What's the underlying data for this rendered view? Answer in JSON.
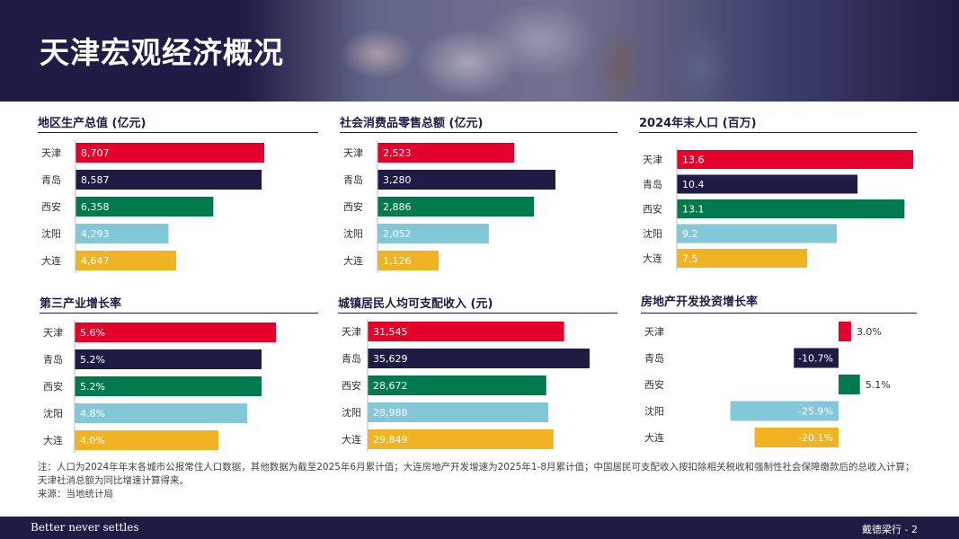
{
  "header": {
    "title": "天津宏观经济概况"
  },
  "colors": {
    "navy": "#1e1b44",
    "red": "#e4002b",
    "green": "#007a4d",
    "lightblue": "#82c8d8",
    "yellow": "#f0b323"
  },
  "chart_data": [
    {
      "type": "bar",
      "orientation": "horizontal",
      "title": "地区生产总值 (亿元)",
      "categories": [
        "天津",
        "青岛",
        "西安",
        "沈阳",
        "大连"
      ],
      "values": [
        8707,
        8587,
        6358,
        4293,
        4647
      ],
      "labels": [
        "8,707",
        "8,587",
        "6,358",
        "4,293",
        "4,647"
      ],
      "colors": [
        "#e4002b",
        "#1e1b44",
        "#007a4d",
        "#82c8d8",
        "#f0b323"
      ]
    },
    {
      "type": "bar",
      "orientation": "horizontal",
      "title": "社会消费品零售总额 (亿元)",
      "categories": [
        "天津",
        "青岛",
        "西安",
        "沈阳",
        "大连"
      ],
      "values": [
        2523,
        3280,
        2886,
        2052,
        1126
      ],
      "labels": [
        "2,523",
        "3,280",
        "2,886",
        "2,052",
        "1,126"
      ],
      "colors": [
        "#e4002b",
        "#1e1b44",
        "#007a4d",
        "#82c8d8",
        "#f0b323"
      ]
    },
    {
      "type": "bar",
      "orientation": "horizontal",
      "title": "2024年末人口 (百万)",
      "categories": [
        "天津",
        "青岛",
        "西安",
        "沈阳",
        "大连"
      ],
      "values": [
        13.6,
        10.4,
        13.1,
        9.2,
        7.5
      ],
      "labels": [
        "13.6",
        "10.4",
        "13.1",
        "9.2",
        "7.5"
      ],
      "colors": [
        "#e4002b",
        "#1e1b44",
        "#007a4d",
        "#82c8d8",
        "#f0b323"
      ]
    },
    {
      "type": "bar",
      "orientation": "horizontal",
      "title": "第三产业增长率",
      "categories": [
        "天津",
        "青岛",
        "西安",
        "沈阳",
        "大连"
      ],
      "values": [
        5.6,
        5.2,
        5.2,
        4.8,
        4.0
      ],
      "labels": [
        "5.6%",
        "5.2%",
        "5.2%",
        "4.8%",
        "4.0%"
      ],
      "colors": [
        "#e4002b",
        "#1e1b44",
        "#007a4d",
        "#82c8d8",
        "#f0b323"
      ]
    },
    {
      "type": "bar",
      "orientation": "horizontal",
      "title": "城镇居民人均可支配收入 (元)",
      "categories": [
        "天津",
        "青岛",
        "西安",
        "沈阳",
        "大连"
      ],
      "values": [
        31545,
        35629,
        28672,
        28988,
        29849
      ],
      "labels": [
        "31,545",
        "35,629",
        "28,672",
        "28,988",
        "29,849"
      ],
      "colors": [
        "#e4002b",
        "#1e1b44",
        "#007a4d",
        "#82c8d8",
        "#f0b323"
      ]
    },
    {
      "type": "bar",
      "orientation": "horizontal",
      "title": "房地产开发投资增长率",
      "categories": [
        "天津",
        "青岛",
        "西安",
        "沈阳",
        "大连"
      ],
      "values": [
        3.0,
        -10.7,
        5.1,
        -25.9,
        -20.1
      ],
      "labels": [
        "3.0%",
        "-10.7%",
        "5.1%",
        "-25.9%",
        "-20.1%"
      ],
      "colors": [
        "#e4002b",
        "#1e1b44",
        "#007a4d",
        "#82c8d8",
        "#f0b323"
      ]
    }
  ],
  "notes": {
    "line1": "注：人口为2024年年末各城市公报常住人口数据，其他数据为截至2025年6月累计值；大连房地产开发增速为2025年1-8月累计值；中国居民可支配收入按扣除相关税收和强制性社会保障缴款后的总收入计算；天津社消总额为同比增速计算得来。",
    "source": "来源：当地统计局"
  },
  "footer": {
    "tagline": "Better never settles",
    "page": "戴德梁行 - 2"
  }
}
